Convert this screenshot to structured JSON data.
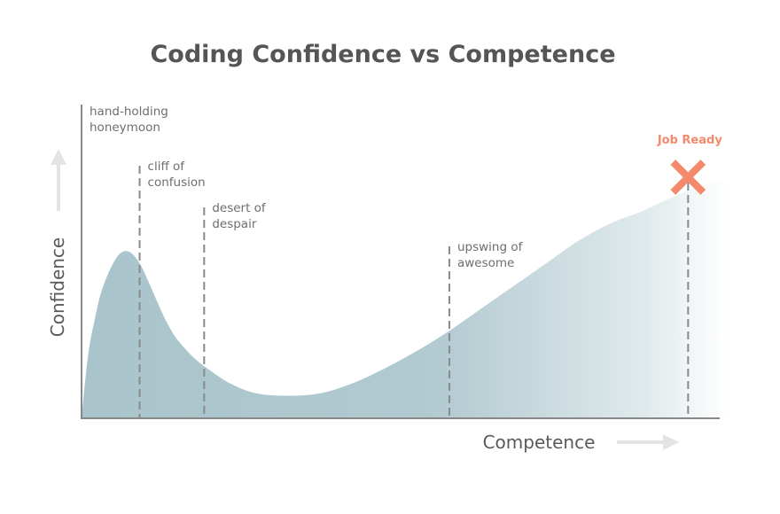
{
  "chart_data": {
    "type": "area",
    "title": "Coding Confidence vs Competence",
    "xlabel": "Competence",
    "ylabel": "Confidence",
    "x": [
      0,
      0.01,
      0.02,
      0.03,
      0.045,
      0.06,
      0.075,
      0.09,
      0.105,
      0.12,
      0.135,
      0.15,
      0.175,
      0.2,
      0.23,
      0.27,
      0.32,
      0.37,
      0.42,
      0.47,
      0.52,
      0.57,
      0.62,
      0.67,
      0.72,
      0.77,
      0.82,
      0.87,
      0.92,
      0.96,
      1.0
    ],
    "y": [
      0.0,
      0.25,
      0.39,
      0.5,
      0.6,
      0.66,
      0.665,
      0.62,
      0.54,
      0.45,
      0.37,
      0.31,
      0.24,
      0.19,
      0.14,
      0.1,
      0.09,
      0.1,
      0.14,
      0.2,
      0.27,
      0.35,
      0.44,
      0.53,
      0.62,
      0.71,
      0.78,
      0.83,
      0.89,
      0.93,
      0.95
    ],
    "grid": false,
    "phases": [
      {
        "x": 0.0,
        "label_lines": [
          "hand-holding",
          "honeymoon"
        ]
      },
      {
        "x": 0.09,
        "label_lines": [
          "cliff of",
          "confusion"
        ]
      },
      {
        "x": 0.19,
        "label_lines": [
          "desert of",
          "despair"
        ]
      },
      {
        "x": 0.57,
        "label_lines": [
          "upswing of",
          "awesome"
        ]
      },
      {
        "x": 0.94,
        "label_lines": []
      }
    ],
    "marker": {
      "label": "Job Ready",
      "x": 0.94,
      "symbol": "x",
      "color": "#f4896b"
    },
    "colors": {
      "area": "#a9c4cb",
      "axis": "#888888",
      "dashed_lines": "#8a8a8a",
      "arrows": "#e3e3e3",
      "title": "#555555",
      "text": "#6e6e6e"
    }
  }
}
